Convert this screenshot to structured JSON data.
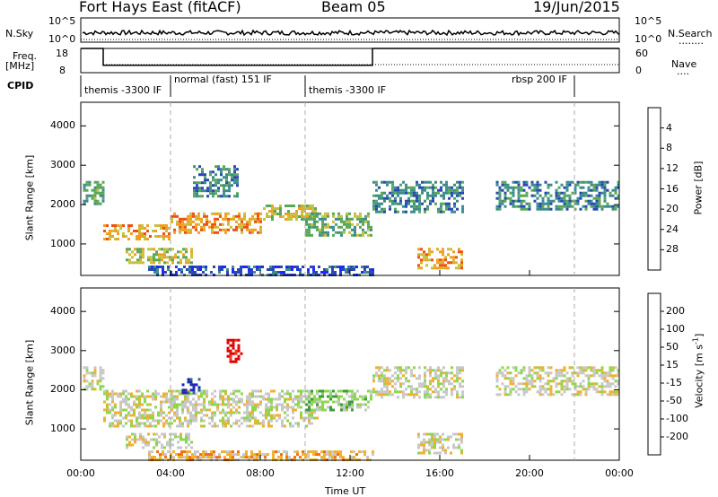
{
  "header": {
    "station": "Fort Hays East (fitACF)",
    "beam": "Beam 05",
    "date": "19/Jun/2015"
  },
  "side_labels": {
    "nsky": "N.Sky",
    "nsearch": "N.Search",
    "freq": "Freq.",
    "freq_unit": "[MHz]",
    "nave": "Nave",
    "cpid": "CPID",
    "dotted": "........",
    "dotted_short": "...."
  },
  "nsky_axis": {
    "top": "10^5",
    "bottom": "10^0"
  },
  "freq_axis": {
    "top": "18",
    "bottom": "8",
    "right_top": "60",
    "right_bottom": "0"
  },
  "cpid_segments": [
    {
      "label": "themis -3300 IF",
      "start_hour": 0.0
    },
    {
      "label": "normal (fast) 151 IF",
      "start_hour": 4.1
    },
    {
      "label": "themis -3300 IF",
      "start_hour": 10.0
    },
    {
      "label": "rbsp 200 IF",
      "start_hour": 19.5
    }
  ],
  "cpid_boundaries_hours": [
    4.0,
    10.0,
    22.0
  ],
  "chart_data": [
    {
      "type": "heatmap",
      "name": "power",
      "ylabel": "Slant Range [km]",
      "ylim": [
        200,
        4600
      ],
      "yticks": [
        "1000",
        "2000",
        "3000",
        "4000"
      ],
      "xlim_hours": [
        0,
        24
      ],
      "colorbar": {
        "label": "Power [dB]",
        "ticks": [
          "4",
          "8",
          "12",
          "16",
          "20",
          "24",
          "28"
        ],
        "colors": [
          "#1c28ff",
          "#2848b4",
          "#3c8c8c",
          "#58a858",
          "#c8c040",
          "#f0a020",
          "#f05010",
          "#e00000"
        ]
      },
      "regions": [
        {
          "t": [
            0.1,
            1.0
          ],
          "r": [
            2000,
            2600
          ],
          "level": 3
        },
        {
          "t": [
            1.0,
            4.0
          ],
          "r": [
            1100,
            1500
          ],
          "level": 5
        },
        {
          "t": [
            4.0,
            8.0
          ],
          "r": [
            1300,
            1800
          ],
          "level": 5
        },
        {
          "t": [
            8.0,
            10.5
          ],
          "r": [
            1600,
            2000
          ],
          "level": 4
        },
        {
          "t": [
            10.0,
            13.0
          ],
          "r": [
            1200,
            1800
          ],
          "level": 3
        },
        {
          "t": [
            2.0,
            5.0
          ],
          "r": [
            500,
            900
          ],
          "level": 4
        },
        {
          "t": [
            5.0,
            7.0
          ],
          "r": [
            2200,
            3000
          ],
          "level": 2
        },
        {
          "t": [
            13.0,
            17.0
          ],
          "r": [
            1800,
            2600
          ],
          "level": 2
        },
        {
          "t": [
            15.0,
            17.0
          ],
          "r": [
            400,
            900
          ],
          "level": 5
        },
        {
          "t": [
            18.5,
            24.0
          ],
          "r": [
            1900,
            2600
          ],
          "level": 2
        },
        {
          "t": [
            3.0,
            13.0
          ],
          "r": [
            200,
            450
          ],
          "level": 1
        }
      ]
    },
    {
      "type": "heatmap",
      "name": "velocity",
      "ylabel": "Slant Range [km]",
      "ylim": [
        200,
        4600
      ],
      "yticks": [
        "1000",
        "2000",
        "3000",
        "4000"
      ],
      "xlim_hours": [
        0,
        24
      ],
      "xticks": [
        "00:00",
        "04:00",
        "08:00",
        "12:00",
        "16:00",
        "20:00",
        "00:00"
      ],
      "xlabel": "Time UT",
      "colorbar": {
        "label": "Velocity [m s^-1]",
        "ticks": [
          "200",
          "100",
          "50",
          "15",
          "-15",
          "-50",
          "-100",
          "-200"
        ],
        "colors": [
          "#1c28b4",
          "#2c6c8c",
          "#3c9c3c",
          "#8cd84c",
          "#c8c8c8",
          "#f0b030",
          "#f07010",
          "#f03010",
          "#e00000"
        ]
      },
      "regions": [
        {
          "t": [
            0.1,
            1.0
          ],
          "r": [
            2000,
            2600
          ],
          "level": 4
        },
        {
          "t": [
            1.0,
            10.5
          ],
          "r": [
            1100,
            2000
          ],
          "level": 4
        },
        {
          "t": [
            10.0,
            13.0
          ],
          "r": [
            1500,
            2000
          ],
          "level": 3
        },
        {
          "t": [
            2.0,
            5.0
          ],
          "r": [
            500,
            900
          ],
          "level": 4
        },
        {
          "t": [
            4.5,
            5.3
          ],
          "r": [
            1900,
            2300
          ],
          "level": 0
        },
        {
          "t": [
            6.5,
            7.2
          ],
          "r": [
            2700,
            3300
          ],
          "level": 8
        },
        {
          "t": [
            13.0,
            17.0
          ],
          "r": [
            1800,
            2600
          ],
          "level": 4
        },
        {
          "t": [
            15.0,
            17.0
          ],
          "r": [
            400,
            900
          ],
          "level": 4
        },
        {
          "t": [
            18.5,
            24.0
          ],
          "r": [
            1900,
            2600
          ],
          "level": 4
        },
        {
          "t": [
            3.0,
            13.0
          ],
          "r": [
            200,
            450
          ],
          "level": 5
        }
      ]
    }
  ]
}
